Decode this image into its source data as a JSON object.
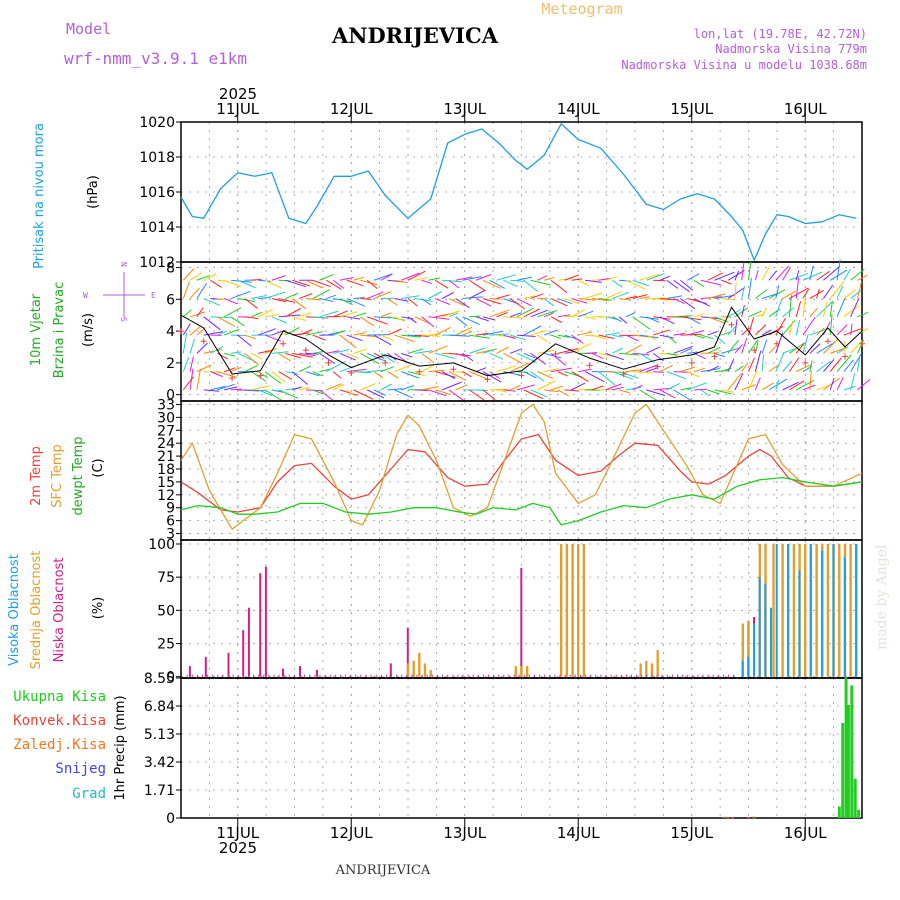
{
  "header": {
    "model_label": "Model",
    "model_name": "wrf-nmm_v3.9.1 e1km",
    "title": "ANDRIJEVICA",
    "meteogram": "Meteogram",
    "lonlat": "lon,lat (19.78E, 42.72N)",
    "elevation": "Nadmorska Visina 779m",
    "model_elevation": "Nadmorska Visina u modelu 1038.68m",
    "footer": "ANDRIJEVICA",
    "watermark": "made by Angel"
  },
  "colors": {
    "pressure": "#1e9fe0",
    "temp2m": "#e8463c",
    "sfc": "#e0a030",
    "dew": "#22cc22",
    "cloud_high": "#1e9fe0",
    "cloud_mid": "#e0a030",
    "cloud_low": "#cc2288",
    "rain_total": "#22cc22",
    "rain_conv": "#e8463c",
    "rain_frozen": "#f07820",
    "snow": "#4444dd",
    "grad": "#22bbbb"
  },
  "chart_data": [
    {
      "type": "line",
      "panel": "pressure",
      "ylabel": [
        "Pritisak na nivou mora",
        "(hPa)"
      ],
      "ylim": [
        1012,
        1020
      ],
      "yticks": [
        "1012",
        "1014",
        "1016",
        "1018",
        "1020"
      ],
      "top_year": "2025",
      "day_labels": [
        "11JUL",
        "12JUL",
        "13JUL",
        "14JUL",
        "15JUL",
        "16JUL"
      ],
      "x_range_days": [
        10.5,
        16.5
      ],
      "series": [
        {
          "color_key": "pressure",
          "x": [
            10.5,
            10.6,
            10.7,
            10.85,
            11.0,
            11.15,
            11.3,
            11.45,
            11.6,
            11.7,
            11.85,
            12.0,
            12.15,
            12.3,
            12.5,
            12.7,
            12.85,
            13.0,
            13.15,
            13.3,
            13.45,
            13.55,
            13.7,
            13.85,
            14.0,
            14.2,
            14.4,
            14.6,
            14.75,
            14.9,
            15.05,
            15.2,
            15.35,
            15.45,
            15.55,
            15.65,
            15.75,
            15.85,
            16.0,
            16.15,
            16.3,
            16.45
          ],
          "y": [
            1015.7,
            1014.6,
            1014.5,
            1016.2,
            1017.1,
            1016.9,
            1017.1,
            1014.5,
            1014.2,
            1015.2,
            1016.9,
            1016.9,
            1017.2,
            1015.8,
            1014.5,
            1015.6,
            1018.8,
            1019.3,
            1019.6,
            1018.8,
            1017.8,
            1017.3,
            1018.1,
            1019.9,
            1019.0,
            1018.5,
            1017.0,
            1015.3,
            1015.0,
            1015.6,
            1015.9,
            1015.6,
            1014.6,
            1013.8,
            1012.1,
            1013.6,
            1014.7,
            1014.6,
            1014.2,
            1014.3,
            1014.7,
            1014.5
          ]
        }
      ]
    },
    {
      "type": "line",
      "panel": "wind",
      "ylabel": [
        "10m Vjetar",
        "Brzina i Pravac",
        "(m/s)"
      ],
      "compass": {
        "n": "N",
        "s": "S",
        "e": "E",
        "w": "W"
      },
      "ylim": [
        0,
        8
      ],
      "yticks": [
        "0",
        "2",
        "4",
        "6",
        "8"
      ],
      "series": [
        {
          "name": "speed",
          "x": [
            10.5,
            10.7,
            10.95,
            11.2,
            11.4,
            11.6,
            11.8,
            12.0,
            12.3,
            12.6,
            12.9,
            13.2,
            13.5,
            13.8,
            14.1,
            14.4,
            14.7,
            15.0,
            15.2,
            15.35,
            15.55,
            15.75,
            16.0,
            16.2,
            16.35,
            16.5
          ],
          "y": [
            5.0,
            4.2,
            1.3,
            1.5,
            4.0,
            3.5,
            2.5,
            1.7,
            2.5,
            1.8,
            2.0,
            1.2,
            1.5,
            3.2,
            2.3,
            1.6,
            2.2,
            2.5,
            3.0,
            5.5,
            3.5,
            4.0,
            2.5,
            4.2,
            3.0,
            4.0
          ]
        }
      ]
    },
    {
      "type": "line",
      "panel": "temperature",
      "ylabel": [
        "2m Temp",
        "SFC Temp",
        "dewpt Temp",
        "(C)"
      ],
      "ylim": [
        1.5,
        33
      ],
      "yticks": [
        "3",
        "6",
        "9",
        "12",
        "15",
        "18",
        "21",
        "24",
        "27",
        "30",
        "33"
      ],
      "series": [
        {
          "name": "2m Temp",
          "color_key": "temp2m",
          "x": [
            10.5,
            10.65,
            10.85,
            11.0,
            11.2,
            11.35,
            11.5,
            11.65,
            11.85,
            12.0,
            12.15,
            12.35,
            12.5,
            12.65,
            12.85,
            13.0,
            13.2,
            13.35,
            13.5,
            13.65,
            13.8,
            14.0,
            14.2,
            14.35,
            14.5,
            14.7,
            14.9,
            15.0,
            15.15,
            15.3,
            15.5,
            15.6,
            15.7,
            15.85,
            16.0,
            16.25,
            16.5
          ],
          "y": [
            15.0,
            12.5,
            8.5,
            8.0,
            9.0,
            15.0,
            18.8,
            19.3,
            14.0,
            11.0,
            12.0,
            18.0,
            22.5,
            22.0,
            16.0,
            14.0,
            14.5,
            20.0,
            25.0,
            26.0,
            20.0,
            16.5,
            17.5,
            21.0,
            24.0,
            23.5,
            17.5,
            15.0,
            14.5,
            16.5,
            21.0,
            22.5,
            21.0,
            16.0,
            14.0,
            14.0,
            15.0
          ]
        },
        {
          "name": "SFC Temp",
          "color_key": "sfc",
          "x": [
            10.5,
            10.6,
            10.75,
            10.95,
            11.05,
            11.2,
            11.35,
            11.5,
            11.65,
            11.85,
            12.0,
            12.1,
            12.25,
            12.4,
            12.5,
            12.6,
            12.75,
            12.9,
            13.05,
            13.2,
            13.35,
            13.5,
            13.6,
            13.7,
            13.8,
            14.0,
            14.15,
            14.3,
            14.5,
            14.6,
            14.75,
            14.95,
            15.1,
            15.25,
            15.35,
            15.5,
            15.65,
            15.8,
            16.0,
            16.25,
            16.5
          ],
          "y": [
            20.0,
            24.0,
            13.0,
            4.0,
            6.0,
            9.0,
            17.0,
            26.0,
            25.0,
            15.0,
            6.0,
            5.0,
            13.0,
            26.0,
            30.5,
            28.0,
            20.0,
            9.0,
            7.0,
            9.0,
            20.0,
            31.0,
            33.0,
            29.0,
            17.0,
            10.0,
            12.0,
            20.0,
            31.0,
            33.0,
            27.0,
            19.0,
            12.0,
            10.0,
            16.0,
            25.0,
            26.0,
            19.0,
            14.0,
            14.0,
            17.0
          ]
        },
        {
          "name": "dewpt Temp",
          "color_key": "dew",
          "x": [
            10.5,
            10.65,
            10.85,
            11.0,
            11.15,
            11.35,
            11.55,
            11.75,
            11.95,
            12.15,
            12.35,
            12.55,
            12.75,
            12.95,
            13.1,
            13.25,
            13.45,
            13.6,
            13.75,
            13.85,
            14.0,
            14.2,
            14.4,
            14.6,
            14.8,
            15.0,
            15.2,
            15.4,
            15.6,
            15.8,
            16.0,
            16.25,
            16.5
          ],
          "y": [
            8.5,
            9.5,
            9.0,
            7.5,
            7.5,
            8.0,
            10.0,
            10.0,
            8.0,
            7.5,
            8.0,
            9.0,
            9.0,
            8.0,
            7.5,
            9.0,
            8.5,
            10.0,
            9.0,
            5.0,
            6.0,
            8.0,
            9.5,
            9.0,
            11.0,
            12.0,
            11.0,
            14.0,
            15.5,
            16.0,
            15.0,
            14.0,
            15.0
          ]
        }
      ]
    },
    {
      "type": "bar",
      "panel": "clouds",
      "ylabel": [
        "Visoka Oblacnost",
        "Srednja Oblacnost",
        "Niska Oblacnost",
        "(%)"
      ],
      "ylim": [
        0,
        100
      ],
      "yticks": [
        "0",
        "25",
        "50",
        "75",
        "100"
      ],
      "series": [
        {
          "name": "Niska",
          "color_key": "cloud_low",
          "x": [
            10.58,
            10.72,
            10.92,
            11.05,
            11.1,
            11.2,
            11.25,
            11.4,
            11.55,
            11.7,
            12.35,
            12.5,
            12.55,
            13.5,
            13.55,
            15.5,
            15.55
          ],
          "values": [
            8,
            15,
            18,
            35,
            52,
            78,
            83,
            6,
            8,
            5,
            10,
            37,
            10,
            82,
            8,
            40,
            45
          ]
        },
        {
          "name": "Srednja",
          "color_key": "cloud_mid",
          "x": [
            12.5,
            12.55,
            12.6,
            12.65,
            12.7,
            13.45,
            13.5,
            13.55,
            13.85,
            13.9,
            13.95,
            14.0,
            14.05,
            14.55,
            14.6,
            14.65,
            14.7,
            15.45,
            15.5,
            15.6,
            15.65,
            15.72,
            15.8,
            15.85,
            15.9,
            15.95,
            16.0,
            16.05,
            16.1,
            16.15,
            16.2,
            16.25,
            16.3,
            16.35,
            16.4,
            16.45
          ],
          "values": [
            10,
            12,
            18,
            10,
            5,
            8,
            8,
            8,
            100,
            100,
            100,
            100,
            100,
            10,
            12,
            10,
            20,
            40,
            42,
            100,
            100,
            100,
            100,
            100,
            100,
            100,
            100,
            100,
            100,
            100,
            100,
            100,
            100,
            100,
            100,
            100
          ]
        },
        {
          "name": "Visoka",
          "color_key": "cloud_high",
          "x": [
            15.45,
            15.5,
            15.55,
            15.6,
            15.65,
            15.7,
            15.75,
            15.85,
            15.95,
            16.05,
            16.15,
            16.25,
            16.35,
            16.45
          ],
          "values": [
            12,
            15,
            40,
            75,
            70,
            52,
            100,
            100,
            80,
            100,
            95,
            100,
            90,
            100
          ]
        }
      ]
    },
    {
      "type": "bar",
      "panel": "precip",
      "ylabel": [
        "1hr Precip (mm)"
      ],
      "legend": [
        "Ukupna Kisa",
        "Konvek.Kisa",
        "Zaledj.Kisa",
        "Snijeg",
        "Grad"
      ],
      "ylim": [
        0,
        8.55
      ],
      "yticks": [
        "0",
        "1.71",
        "3.42",
        "5.13",
        "6.84",
        "8.55"
      ],
      "bottom_year": "2025",
      "series": [
        {
          "name": "Ukupna Kisa",
          "color_key": "rain_total",
          "x": [
            15.3,
            15.55,
            16.3,
            16.33,
            16.36,
            16.38,
            16.41,
            16.44,
            16.47
          ],
          "values": [
            0.08,
            0.08,
            0.7,
            5.8,
            8.6,
            6.9,
            8.1,
            2.4,
            0.5
          ]
        },
        {
          "name": "Konvek.Kisa",
          "color_key": "rain_conv",
          "x": [
            15.28,
            15.32,
            15.36,
            15.5,
            15.55
          ],
          "values": [
            0.06,
            0.05,
            0.04,
            0.05,
            0.04
          ]
        }
      ]
    }
  ]
}
